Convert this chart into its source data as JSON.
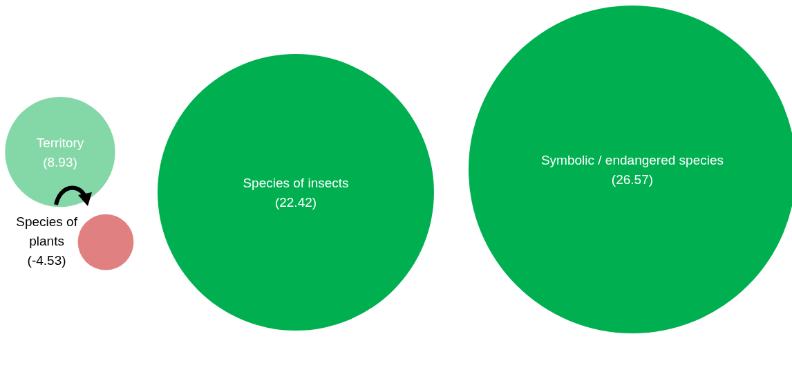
{
  "chart_data": {
    "type": "other",
    "categories": [
      "Territory",
      "Species of plants",
      "Species of insects",
      "Symbolic / endangered species"
    ],
    "values": [
      8.93,
      -4.53,
      22.42,
      26.57
    ],
    "value_labels": [
      "(8.93)",
      "(-4.53)",
      "(22.42)",
      "(26.57)"
    ],
    "colors": [
      "#84d8a8",
      "#e08080",
      "#00b050",
      "#00b050"
    ]
  }
}
